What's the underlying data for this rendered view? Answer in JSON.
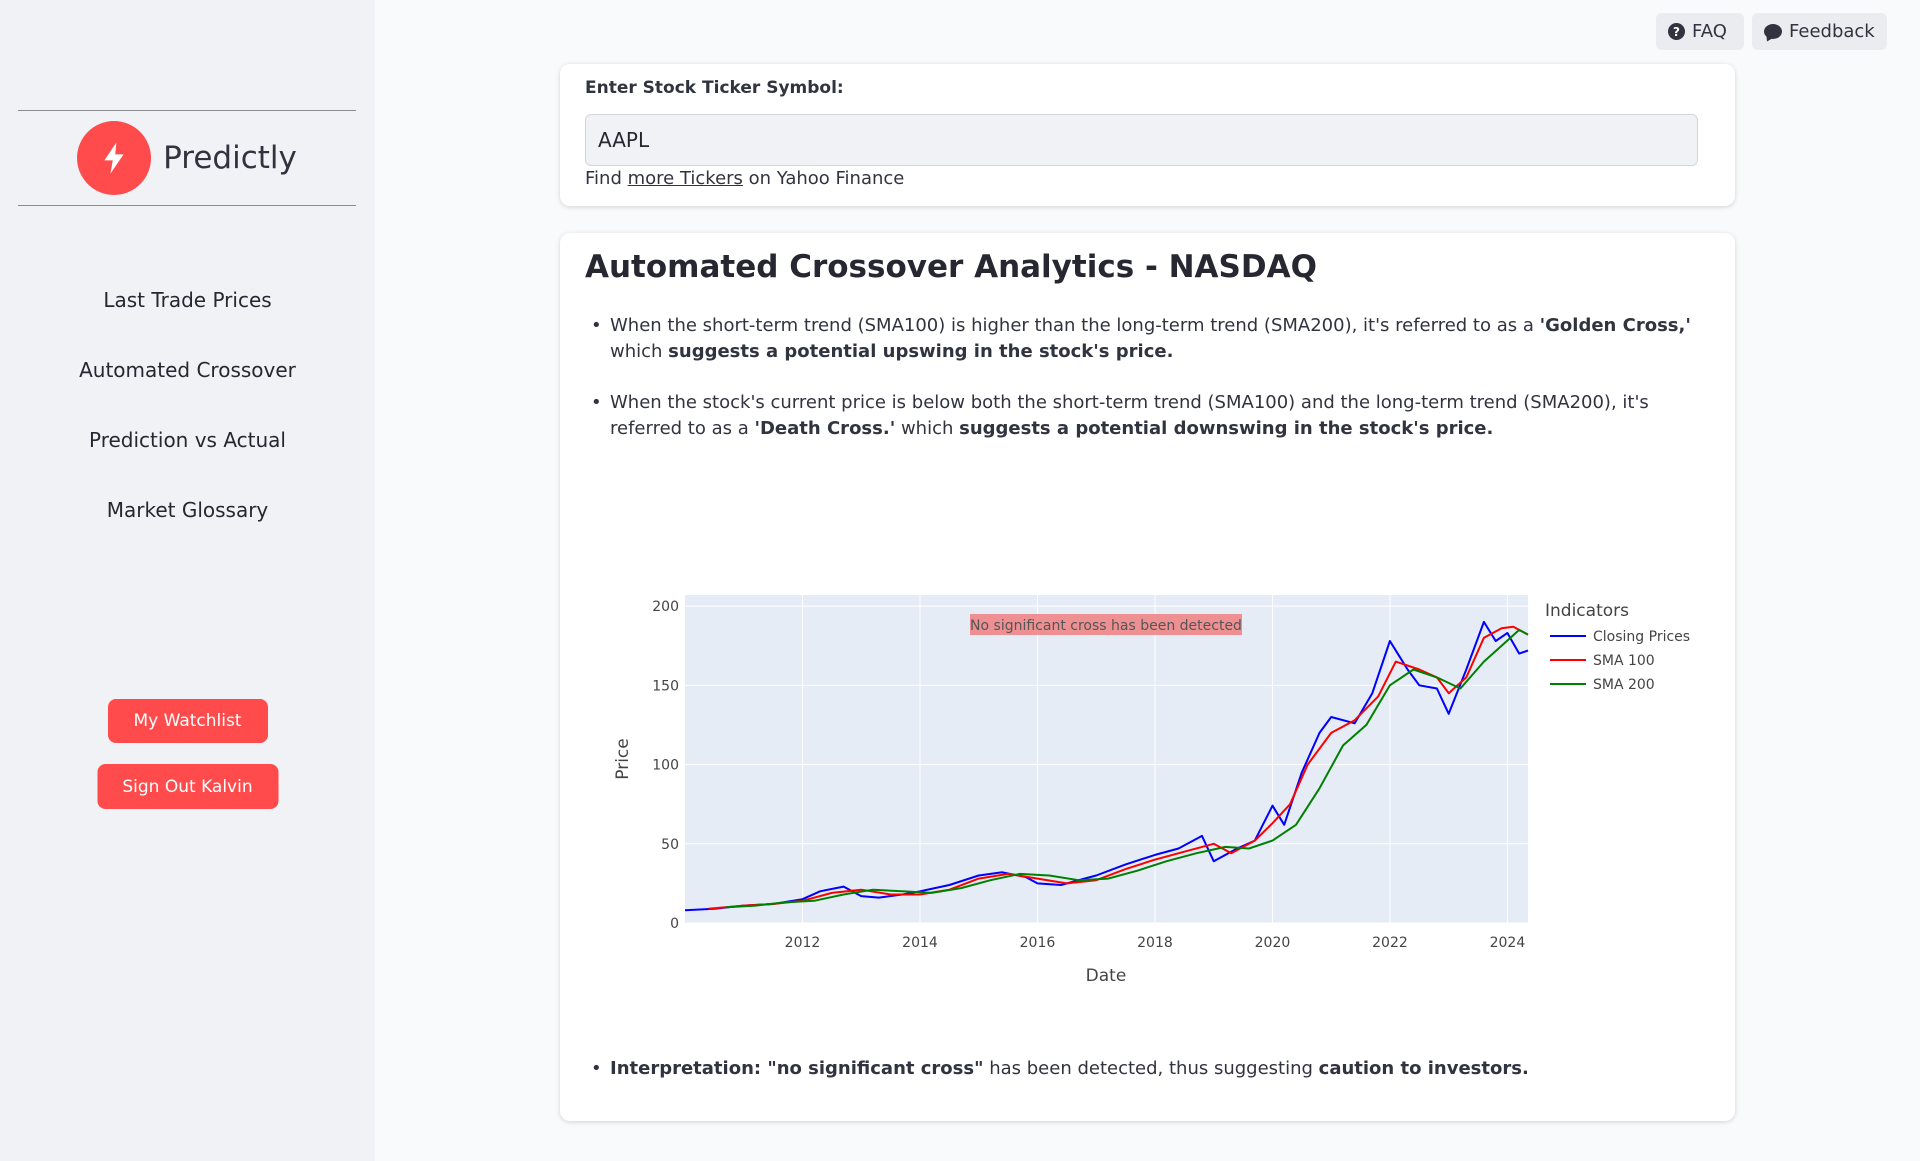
{
  "sidebar": {
    "brand": "Predictly",
    "nav": [
      "Last Trade Prices",
      "Automated Crossover",
      "Prediction vs Actual",
      "Market Glossary"
    ],
    "watchlist_label": "My Watchlist",
    "signout_label": "Sign Out Kalvin"
  },
  "topbar": {
    "faq_label": "FAQ",
    "feedback_label": "Feedback"
  },
  "ticker": {
    "label": "Enter Stock Ticker Symbol:",
    "value": "AAPL",
    "help_prefix": "Find ",
    "help_link": "more Tickers",
    "help_suffix": " on Yahoo Finance"
  },
  "analysis": {
    "title": "Automated Crossover Analytics - NASDAQ",
    "b1_a": "When the short-term trend (SMA100) is higher than the long-term trend (SMA200), it's referred to as a ",
    "b1_b": "'Golden Cross,'",
    "b1_c": " which ",
    "b1_d": "suggests a potential upswing in the stock's price.",
    "b2_a": "When the stock's current price is below both the short-term trend (SMA100) and the long-term trend (SMA200), it's referred to as a ",
    "b2_b": "'Death Cross.'",
    "b2_c": " which ",
    "b2_d": "suggests a potential downswing in the stock's price.",
    "interp_a": "Interpretation: \"no significant cross\"",
    "interp_b": " has been detected, thus suggesting ",
    "interp_c": "caution to investors."
  },
  "chart_data": {
    "type": "line",
    "xlabel": "Date",
    "ylabel": "Price",
    "xlim": [
      2010.0,
      2024.35
    ],
    "ylim": [
      0,
      207
    ],
    "x_ticks": [
      2012,
      2014,
      2016,
      2018,
      2020,
      2022,
      2024
    ],
    "y_ticks": [
      0,
      50,
      100,
      150,
      200
    ],
    "legend_title": "Indicators",
    "legend_position": "right",
    "annotation": "No significant cross has been detected",
    "grid": true,
    "colors": {
      "plot_bg": "#e5ecf6",
      "annotation_bg": "#f08080"
    },
    "series": [
      {
        "name": "Closing Prices",
        "color": "#0000ff",
        "x": [
          2010.0,
          2010.5,
          2011.0,
          2011.5,
          2012.0,
          2012.3,
          2012.7,
          2013.0,
          2013.3,
          2013.7,
          2014.0,
          2014.5,
          2015.0,
          2015.4,
          2015.8,
          2016.0,
          2016.4,
          2016.8,
          2017.0,
          2017.5,
          2018.0,
          2018.4,
          2018.8,
          2019.0,
          2019.4,
          2019.7,
          2020.0,
          2020.2,
          2020.5,
          2020.8,
          2021.0,
          2021.4,
          2021.7,
          2022.0,
          2022.3,
          2022.5,
          2022.8,
          2023.0,
          2023.3,
          2023.6,
          2023.8,
          2024.0,
          2024.2,
          2024.35
        ],
        "y": [
          8,
          9,
          11,
          12,
          15,
          20,
          23,
          17,
          16,
          18,
          20,
          24,
          30,
          32,
          29,
          25,
          24,
          28,
          30,
          37,
          43,
          47,
          55,
          39,
          47,
          52,
          74,
          62,
          95,
          120,
          130,
          126,
          145,
          178,
          160,
          150,
          148,
          132,
          160,
          190,
          178,
          183,
          170,
          172
        ]
      },
      {
        "name": "SMA 100",
        "color": "#ff0000",
        "x": [
          2010.4,
          2011.0,
          2011.5,
          2012.0,
          2012.5,
          2013.0,
          2013.5,
          2014.0,
          2014.5,
          2015.0,
          2015.5,
          2016.0,
          2016.5,
          2017.0,
          2017.5,
          2018.0,
          2018.5,
          2019.0,
          2019.3,
          2019.7,
          2020.0,
          2020.3,
          2020.6,
          2021.0,
          2021.4,
          2021.8,
          2022.1,
          2022.5,
          2022.8,
          2023.0,
          2023.3,
          2023.6,
          2023.9,
          2024.1,
          2024.35
        ],
        "y": [
          9,
          11,
          12,
          14,
          19,
          21,
          18,
          18,
          21,
          28,
          31,
          28,
          25,
          27,
          34,
          40,
          45,
          50,
          44,
          52,
          63,
          75,
          100,
          120,
          128,
          143,
          165,
          160,
          155,
          145,
          155,
          180,
          186,
          187,
          182
        ]
      },
      {
        "name": "SMA 200",
        "color": "#008000",
        "x": [
          2010.7,
          2011.2,
          2011.7,
          2012.2,
          2012.7,
          2013.2,
          2013.7,
          2014.2,
          2014.7,
          2015.2,
          2015.7,
          2016.2,
          2016.7,
          2017.2,
          2017.7,
          2018.2,
          2018.7,
          2019.2,
          2019.6,
          2020.0,
          2020.4,
          2020.8,
          2021.2,
          2021.6,
          2022.0,
          2022.4,
          2022.8,
          2023.2,
          2023.6,
          2023.9,
          2024.2,
          2024.35
        ],
        "y": [
          10,
          11,
          13,
          14,
          18,
          21,
          20,
          19,
          22,
          27,
          31,
          30,
          27,
          28,
          33,
          39,
          44,
          48,
          47,
          52,
          62,
          85,
          112,
          125,
          150,
          160,
          155,
          148,
          165,
          175,
          185,
          182
        ]
      }
    ]
  }
}
